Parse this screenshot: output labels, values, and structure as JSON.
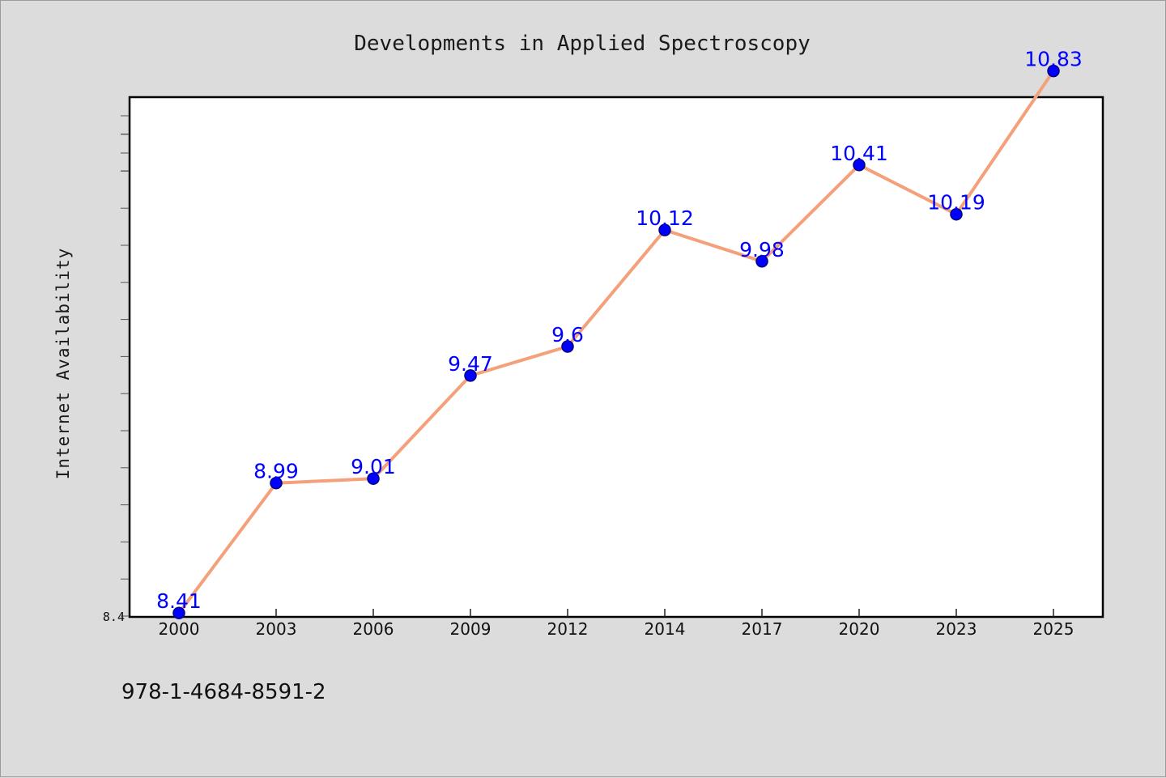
{
  "chart_data": {
    "type": "line",
    "title": "Developments in Applied Spectroscopy",
    "xlabel": "",
    "ylabel": "Internet Availability",
    "categories": [
      "2000",
      "2003",
      "2006",
      "2009",
      "2012",
      "2014",
      "2017",
      "2020",
      "2023",
      "2025"
    ],
    "series": [
      {
        "values": [
          8.41,
          8.99,
          9.01,
          9.47,
          9.6,
          10.12,
          9.98,
          10.41,
          10.19,
          10.83
        ],
        "value_labels": [
          "8.41",
          "8.99",
          "9.01",
          "9.47",
          "9.6",
          "10.12",
          "9.98",
          "10.41",
          "10.19",
          "10.83"
        ]
      }
    ],
    "y_tick_labels": [
      "8.4"
    ],
    "ylim": [
      8.4,
      11.2
    ],
    "grid": false,
    "legend": "none",
    "colors": {
      "line": "#f4a07a",
      "marker": "#0000ff",
      "label": "#0000ff",
      "page_background": "#dcdcdc",
      "plot_background": "#ffffff"
    }
  },
  "footer": {
    "isbn": "978-1-4684-8591-2"
  }
}
